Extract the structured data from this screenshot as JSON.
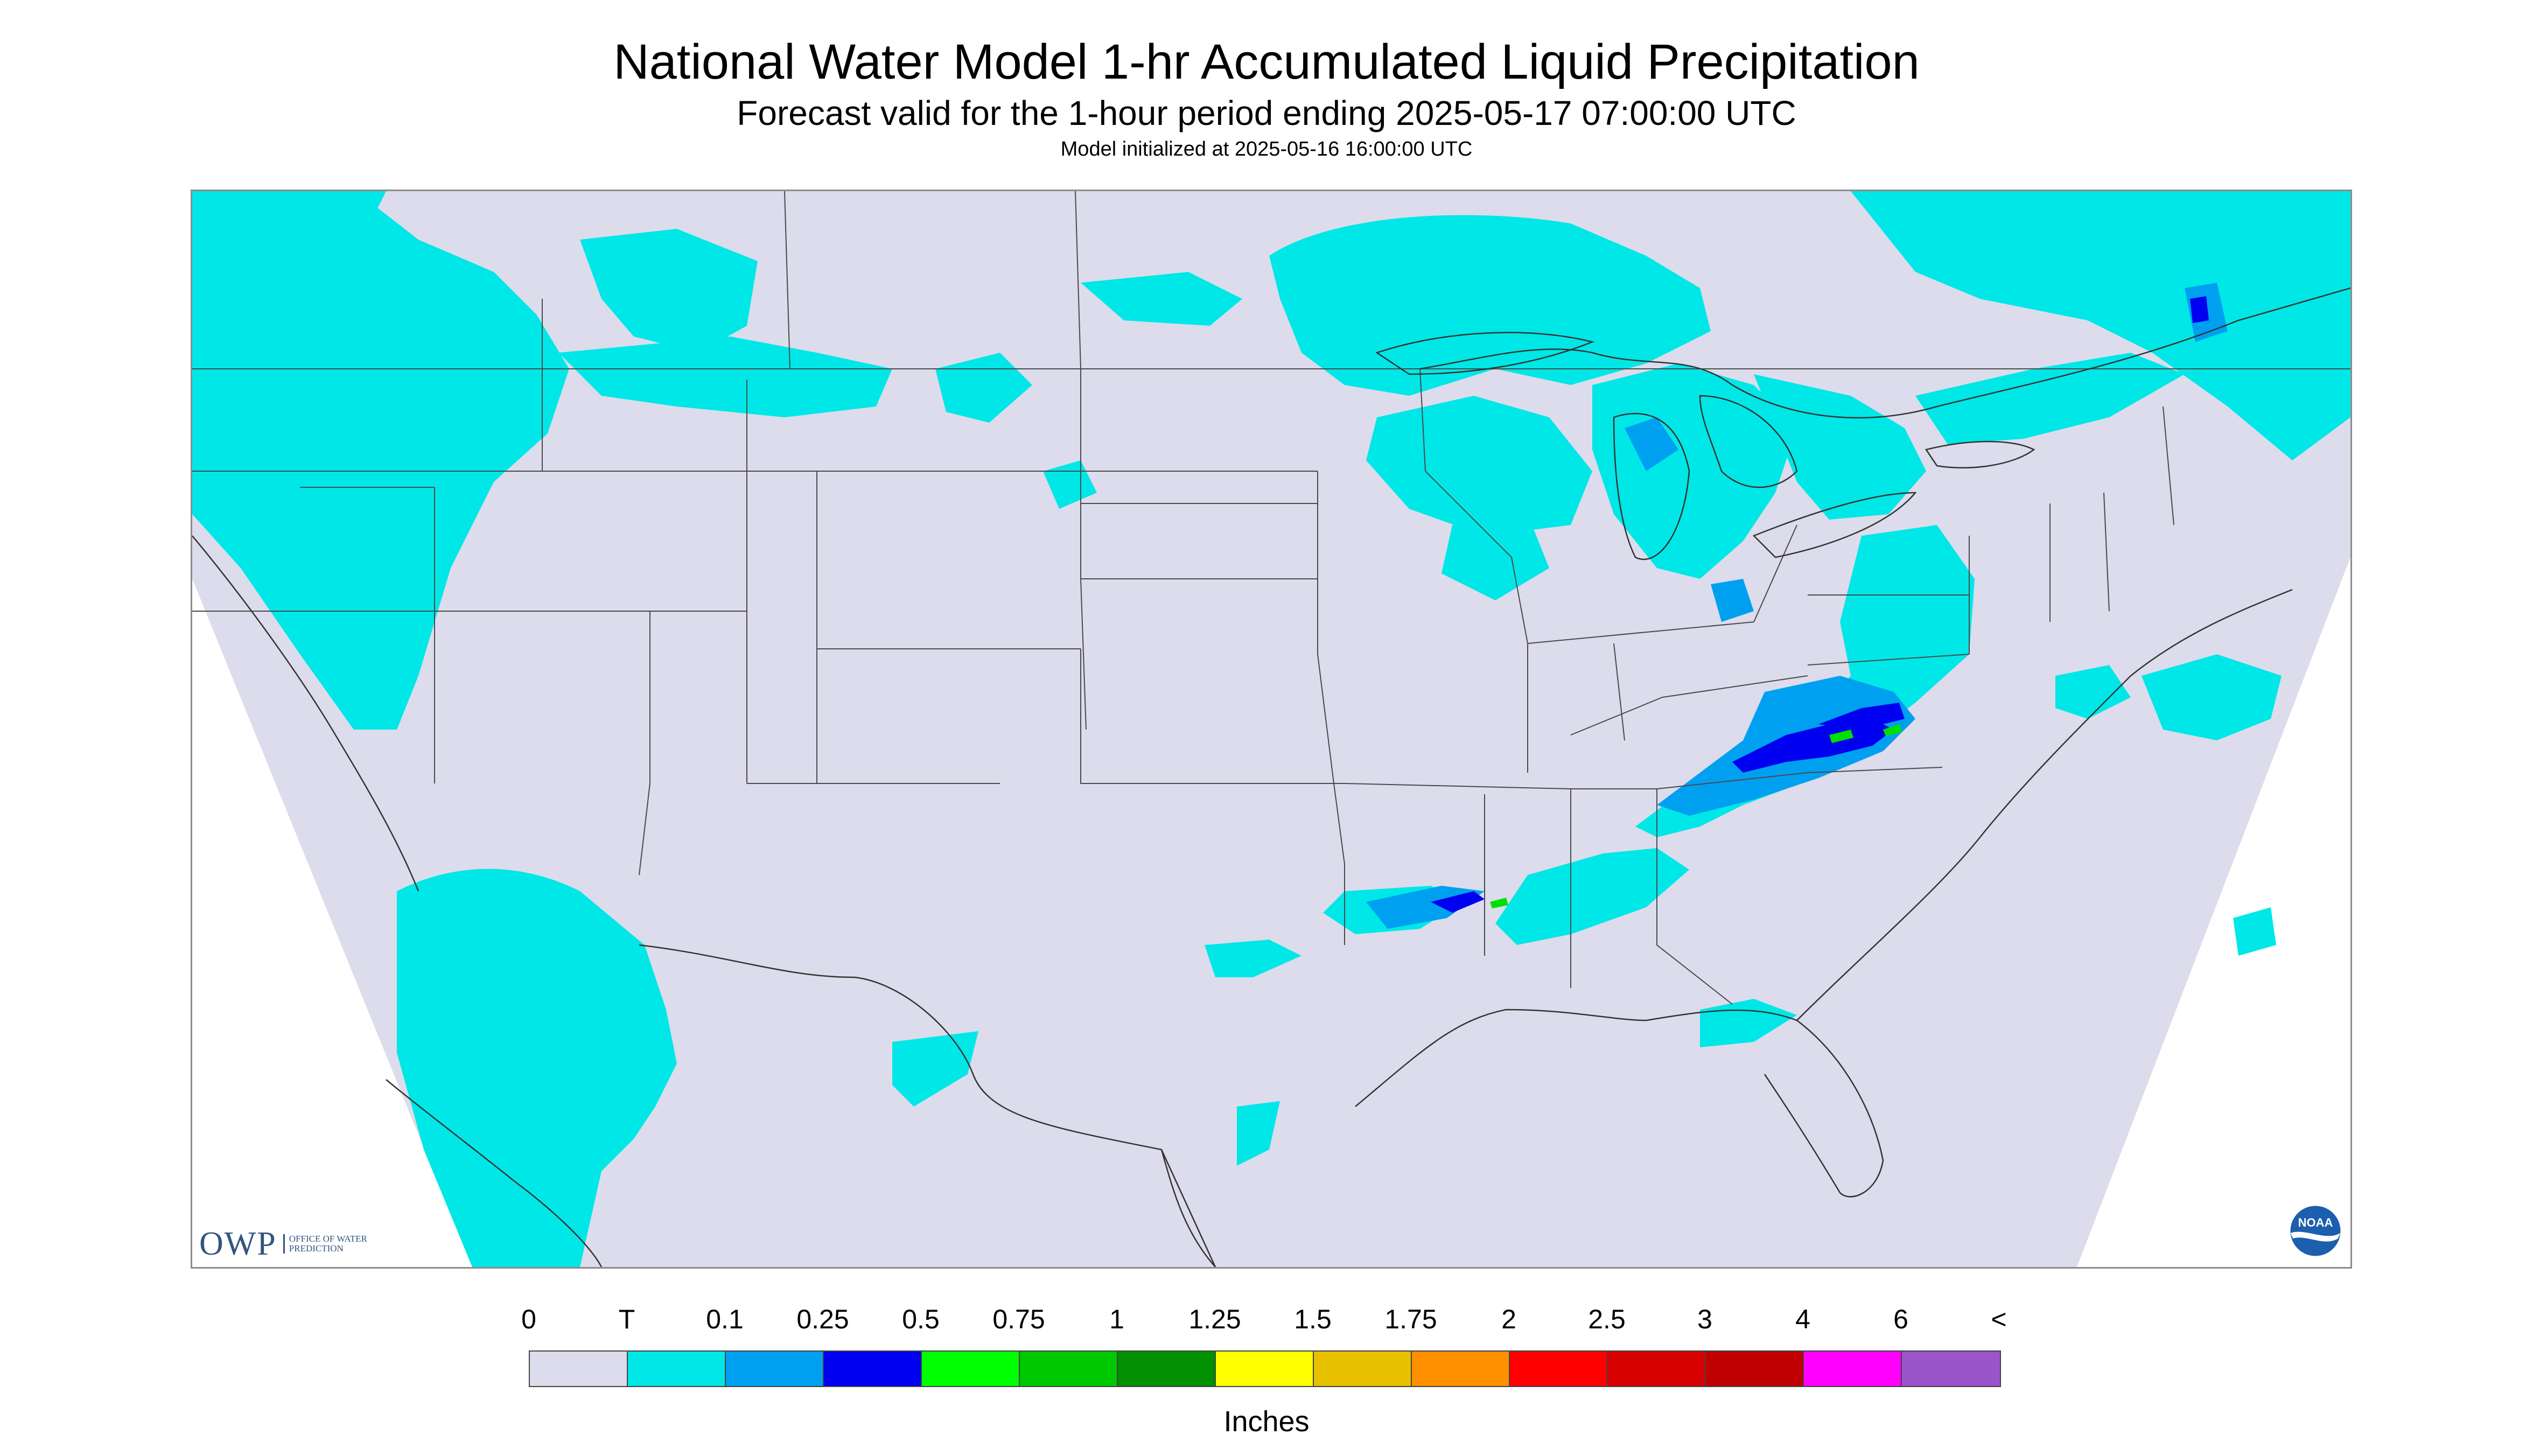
{
  "header": {
    "title": "National Water Model 1-hr Accumulated Liquid Precipitation",
    "subtitle": "Forecast valid for the 1-hour period ending 2025-05-17 07:00:00 UTC",
    "init": "Model initialized at 2025-05-16 16:00:00 UTC"
  },
  "map": {
    "background_color": "#dcdcec",
    "border_color": "#4a4a4a",
    "precip_colors": {
      "trace": "#00e7e7",
      "light": "#00a0f0",
      "moderate": "#0000f0",
      "heavy": "#00e000"
    }
  },
  "logos": {
    "owp_main": "OWP",
    "owp_sub": "OFFICE OF WATER PREDICTION",
    "noaa_text": "NOAA"
  },
  "legend": {
    "labels": [
      "0",
      "T",
      "0.1",
      "0.25",
      "0.5",
      "0.75",
      "1",
      "1.25",
      "1.5",
      "1.75",
      "2",
      "2.5",
      "3",
      "4",
      "6",
      "<"
    ],
    "colors": [
      "#dcdcec",
      "#00e7e7",
      "#00a0f0",
      "#0000f0",
      "#00ff00",
      "#00c800",
      "#009000",
      "#ffff00",
      "#e7c000",
      "#ff9000",
      "#ff0000",
      "#d60000",
      "#c00000",
      "#ff00ff",
      "#9955c9"
    ],
    "units": "Inches"
  }
}
